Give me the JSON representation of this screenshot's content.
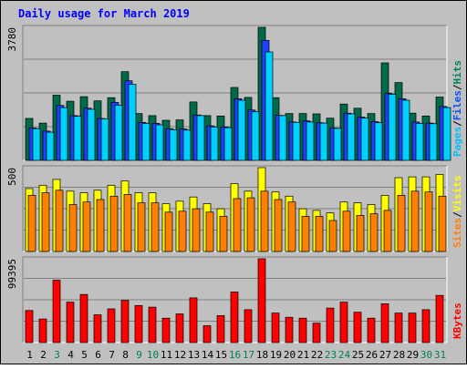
{
  "chart_data": {
    "type": "bar",
    "title": "Daily usage for March 2019",
    "categories": [
      "1",
      "2",
      "3",
      "4",
      "5",
      "6",
      "7",
      "8",
      "9",
      "10",
      "11",
      "12",
      "13",
      "14",
      "15",
      "16",
      "17",
      "18",
      "19",
      "20",
      "21",
      "22",
      "23",
      "24",
      "25",
      "26",
      "27",
      "28",
      "29",
      "30",
      "31"
    ],
    "weekend_days": [
      "3",
      "9",
      "10",
      "16",
      "17",
      "23",
      "24",
      "30",
      "31"
    ],
    "panels": [
      {
        "id": "hits_files_pages",
        "max_label": "3780",
        "ylim": [
          0,
          3780
        ],
        "right_labels": [
          {
            "text": "Pages",
            "color": "#00c0ff"
          },
          {
            "text": "/",
            "color": "#000000"
          },
          {
            "text": "Files",
            "color": "#0050ff"
          },
          {
            "text": "/",
            "color": "#000000"
          },
          {
            "text": "Hits",
            "color": "#008060"
          }
        ],
        "series": [
          {
            "name": "Hits",
            "color": "#006a4a",
            "values": [
              1190,
              1060,
              1850,
              1680,
              1810,
              1690,
              1780,
              2520,
              1330,
              1270,
              1140,
              1150,
              1660,
              1270,
              1260,
              2070,
              1790,
              3780,
              1780,
              1330,
              1330,
              1320,
              1200,
              1600,
              1480,
              1330,
              2770,
              2210,
              1340,
              1260,
              1800
            ]
          },
          {
            "name": "Files",
            "color": "#2040ff",
            "values": [
              920,
              830,
              1560,
              1270,
              1480,
              1190,
              1650,
              2260,
              1080,
              1050,
              900,
              890,
              1290,
              980,
              950,
              1750,
              1430,
              3410,
              1280,
              1090,
              1120,
              1070,
              920,
              1340,
              1230,
              1100,
              1900,
              1750,
              1090,
              1060,
              1530
            ]
          },
          {
            "name": "Pages",
            "color": "#00d0ff",
            "values": [
              900,
              800,
              1500,
              1250,
              1450,
              1180,
              1570,
              2160,
              1050,
              1010,
              870,
              860,
              1270,
              950,
              930,
              1710,
              1380,
              3080,
              1270,
              1080,
              1090,
              1060,
              910,
              1320,
              1200,
              1070,
              1880,
              1710,
              1050,
              1040,
              1500
            ]
          }
        ]
      },
      {
        "id": "visits_sites",
        "max_label": "500",
        "ylim": [
          0,
          500
        ],
        "right_labels": [
          {
            "text": "Sites",
            "color": "#ff8000"
          },
          {
            "text": "/",
            "color": "#000000"
          },
          {
            "text": "Visits",
            "color": "#ffff00"
          }
        ],
        "series": [
          {
            "name": "Visits",
            "color": "#ffff00",
            "values": [
              375,
              395,
              430,
              360,
              350,
              365,
              395,
              420,
              350,
              350,
              285,
              300,
              325,
              285,
              255,
              405,
              360,
              500,
              355,
              330,
              255,
              245,
              230,
              295,
              290,
              280,
              335,
              440,
              445,
              445,
              460
            ]
          },
          {
            "name": "Sites",
            "color": "#ff8000",
            "values": [
              335,
              350,
              365,
              280,
              295,
              310,
              330,
              340,
              290,
              290,
              235,
              240,
              255,
              235,
              210,
              315,
              320,
              360,
              310,
              295,
              210,
              210,
              185,
              240,
              215,
              225,
              245,
              335,
              360,
              355,
              330
            ]
          }
        ]
      },
      {
        "id": "kbytes",
        "max_label": "99395",
        "ylim": [
          0,
          99395
        ],
        "right_labels": [
          {
            "text": "KBytes",
            "color": "#ff0000"
          }
        ],
        "series": [
          {
            "name": "KBytes",
            "color": "#ff0000",
            "values": [
              38000,
              28000,
              74000,
              48000,
              57000,
              33000,
              40000,
              50000,
              44000,
              42000,
              29000,
              34000,
              53000,
              20000,
              32000,
              60000,
              39000,
              99395,
              35000,
              30000,
              29000,
              23000,
              41000,
              48000,
              36000,
              29000,
              46000,
              35000,
              35000,
              39000,
              56000
            ]
          }
        ]
      }
    ]
  }
}
